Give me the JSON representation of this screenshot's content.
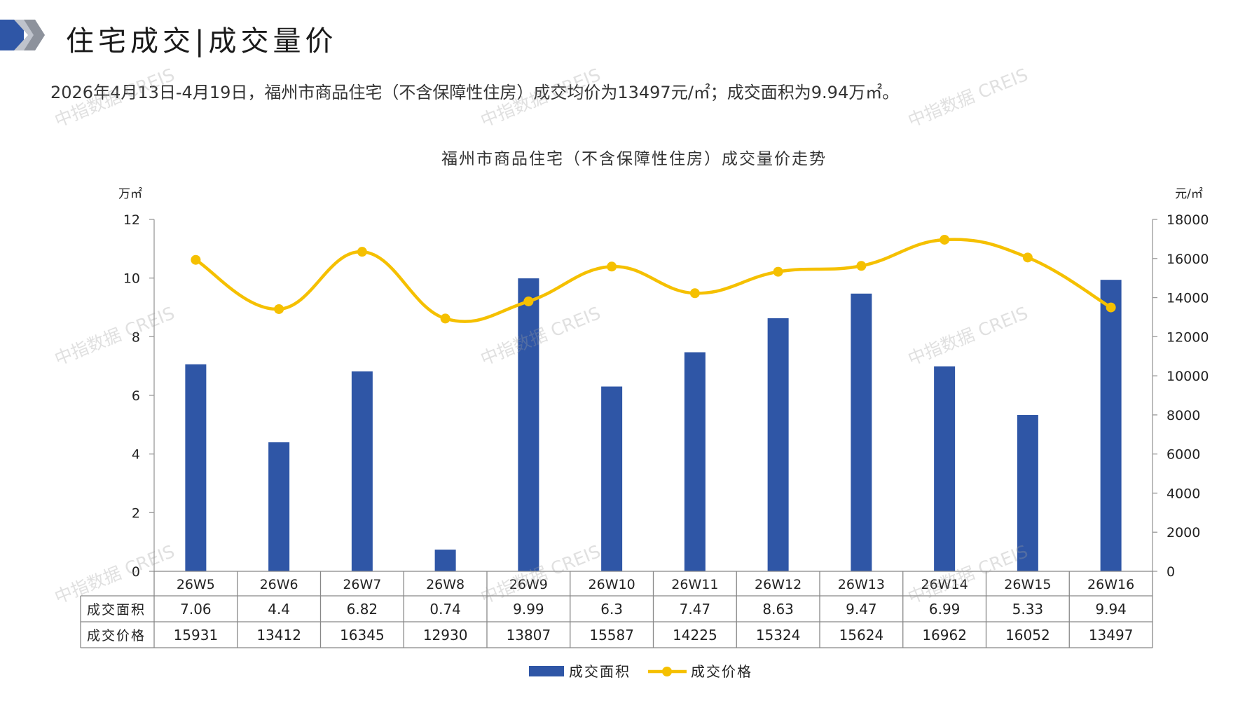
{
  "header": {
    "title": "住宅成交|成交量价"
  },
  "summary": "2026年4月13日-4月19日，福州市商品住宅（不含保障性住房）成交均价为13497元/㎡；成交面积为9.94万㎡。",
  "watermark": "中指数据 CREIS",
  "chart_data": {
    "type": "bar",
    "title": "福州市商品住宅（不含保障性住房）成交量价走势",
    "categories": [
      "26W5",
      "26W6",
      "26W7",
      "26W8",
      "26W9",
      "26W10",
      "26W11",
      "26W12",
      "26W13",
      "26W14",
      "26W15",
      "26W16"
    ],
    "y_left_unit": "万㎡",
    "y_right_unit": "元/㎡",
    "y_left_ticks": [
      "0",
      "2",
      "4",
      "6",
      "8",
      "10",
      "12"
    ],
    "y_right_ticks": [
      "0",
      "2000",
      "4000",
      "6000",
      "8000",
      "10000",
      "12000",
      "14000",
      "16000",
      "18000"
    ],
    "ylim_left": [
      0,
      12
    ],
    "ylim_right": [
      0,
      18000
    ],
    "series": [
      {
        "name": "成交面积",
        "type": "bar",
        "axis": "left",
        "color": "#2f56a6",
        "values": [
          7.06,
          4.4,
          6.82,
          0.74,
          9.99,
          6.3,
          7.47,
          8.63,
          9.47,
          6.99,
          5.33,
          9.94
        ],
        "labels": [
          "7.06",
          "4.4",
          "6.82",
          "0.74",
          "9.99",
          "6.3",
          "7.47",
          "8.63",
          "9.47",
          "6.99",
          "5.33",
          "9.94"
        ]
      },
      {
        "name": "成交价格",
        "type": "line",
        "axis": "right",
        "color": "#f5c000",
        "values": [
          15931,
          13412,
          16345,
          12930,
          13807,
          15587,
          14225,
          15324,
          15624,
          16962,
          16052,
          13497
        ],
        "labels": [
          "15931",
          "13412",
          "16345",
          "12930",
          "13807",
          "15587",
          "14225",
          "15324",
          "15624",
          "16962",
          "16052",
          "13497"
        ]
      }
    ],
    "legend_position": "bottom",
    "grid": false
  }
}
